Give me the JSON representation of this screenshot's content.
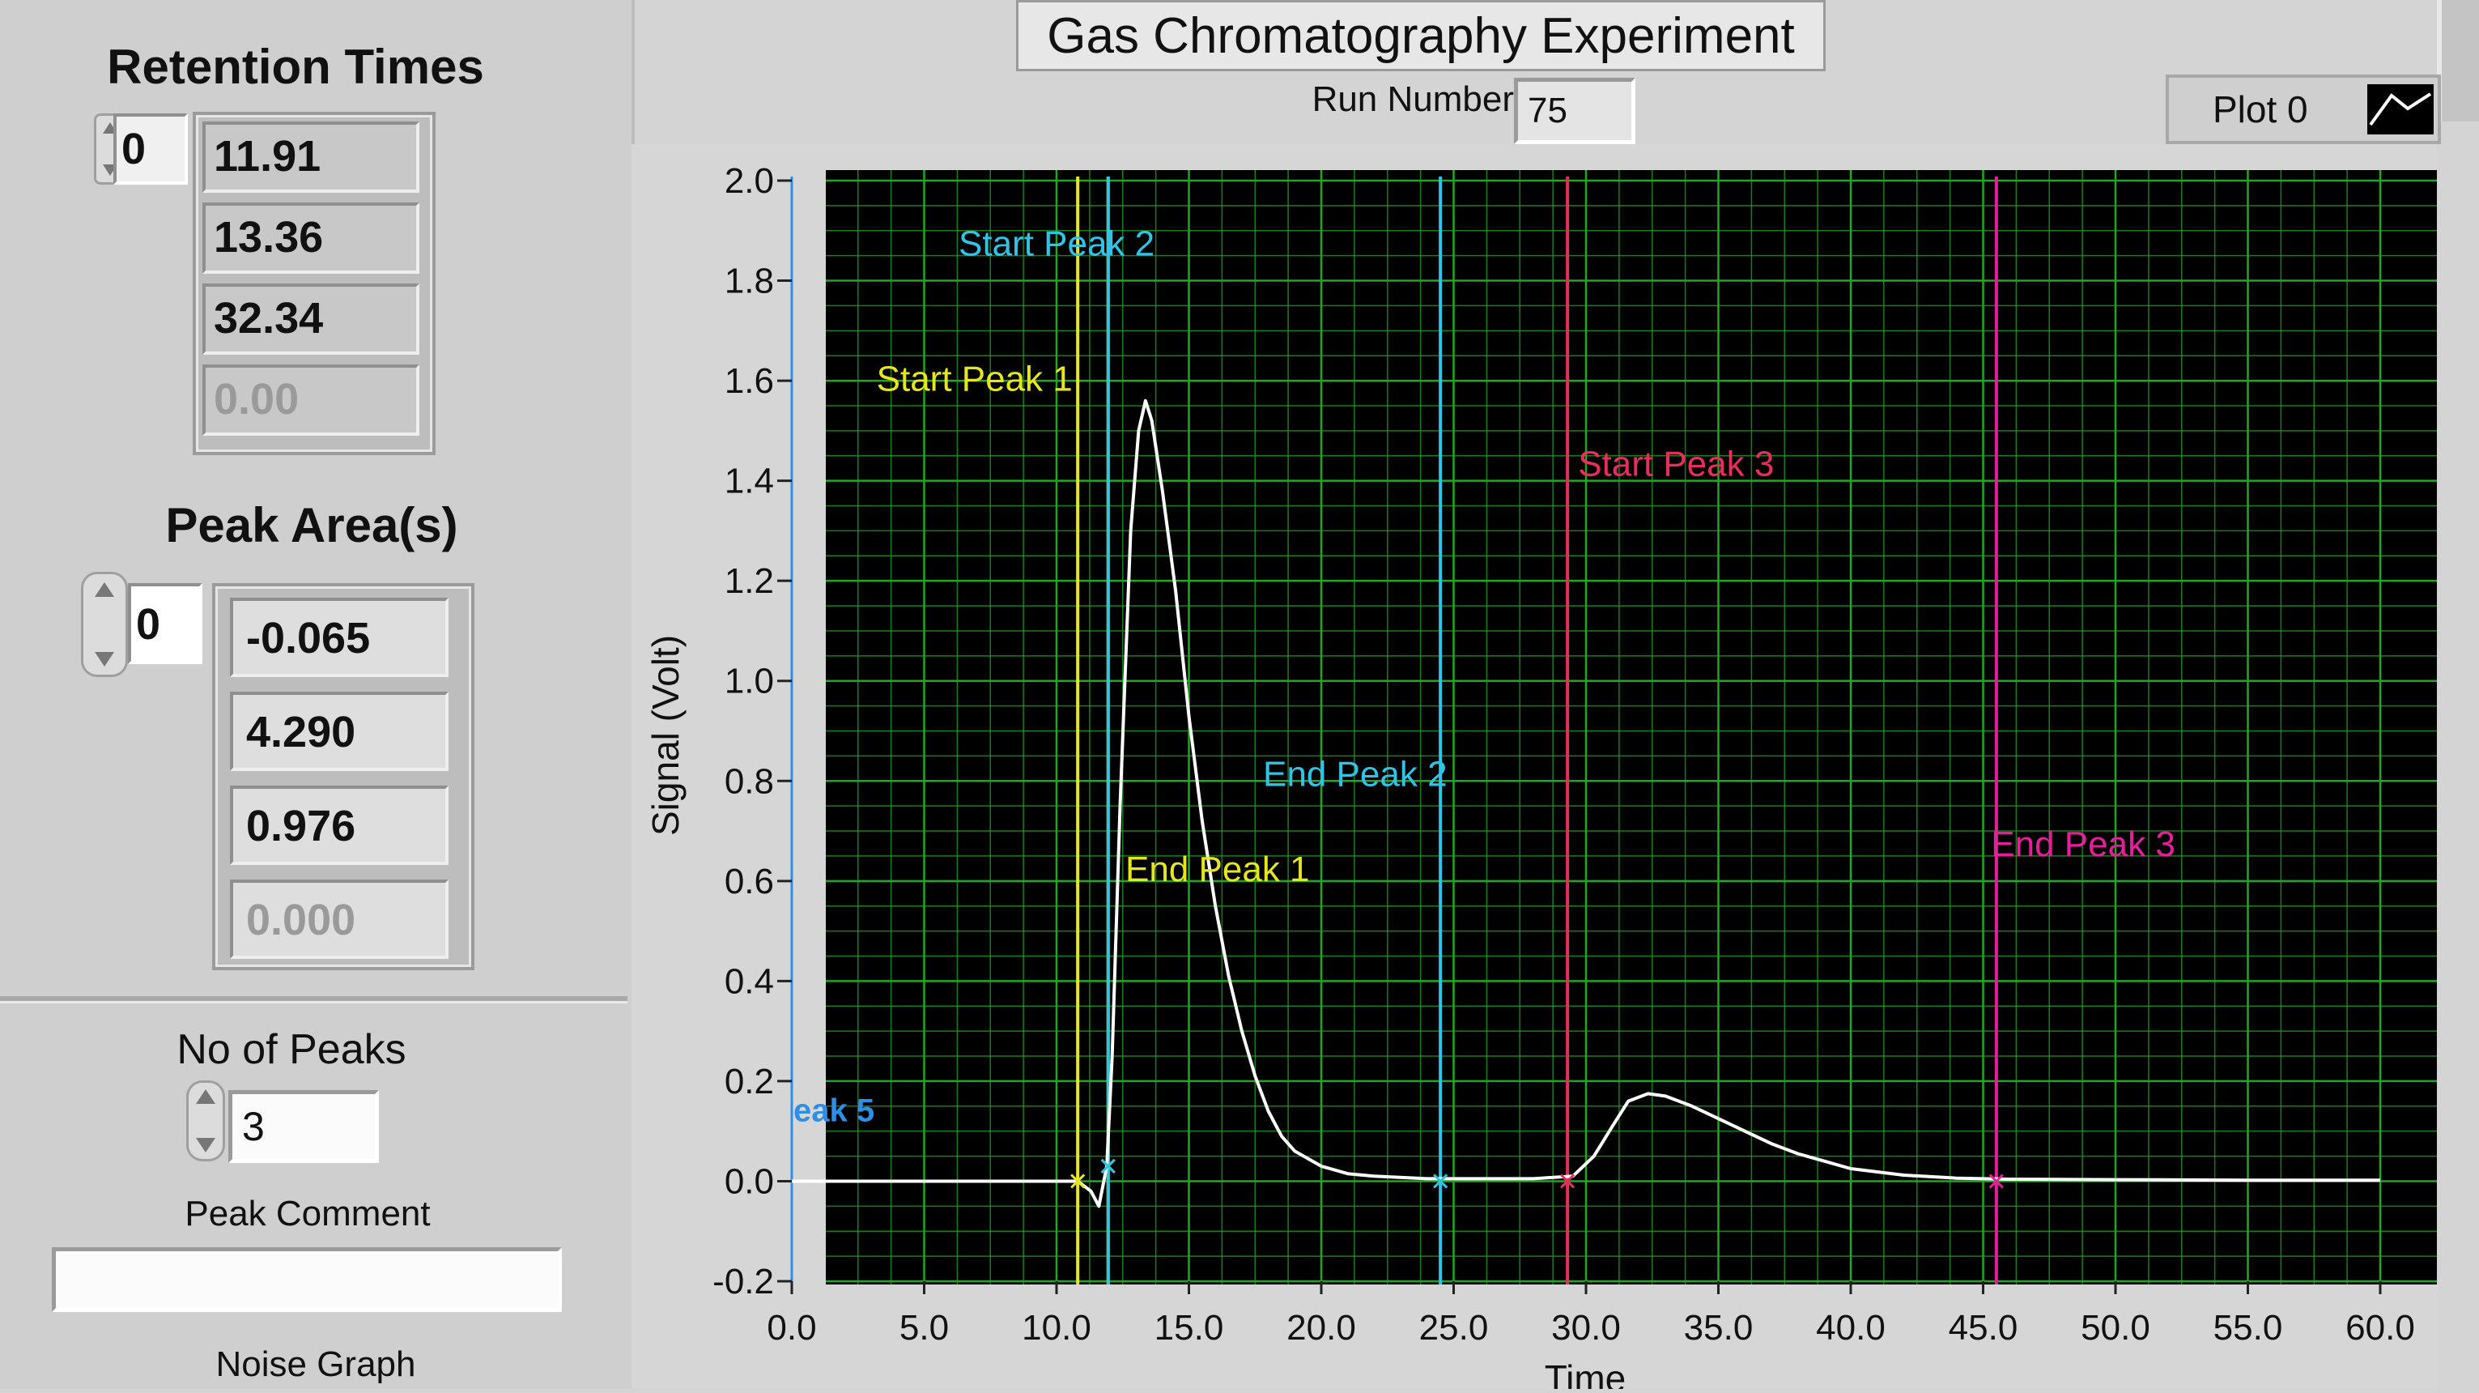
{
  "retention": {
    "title": "Retention Times",
    "index": "0",
    "values": [
      "11.91",
      "13.36",
      "32.34",
      "0.00"
    ]
  },
  "area": {
    "title": "Peak Area(s)",
    "index": "0",
    "values": [
      "-0.065",
      "4.290",
      "0.976",
      "0.000"
    ]
  },
  "peaks": {
    "label": "No of Peaks",
    "value": "3",
    "comment_label": "Peak Comment",
    "comment_value": "",
    "noise_label": "Noise Graph"
  },
  "header": {
    "title": "Gas Chromatography Experiment",
    "run_label": "Run Number",
    "run_value": "75",
    "plot_legend": "Plot 0"
  },
  "chart_data": {
    "type": "line",
    "xlabel": "Time",
    "ylabel": "Signal (Volt)",
    "xlim": [
      0,
      60
    ],
    "ylim": [
      -0.2,
      2.0
    ],
    "xticks": [
      "0.0",
      "5.0",
      "10.0",
      "15.0",
      "20.0",
      "25.0",
      "30.0",
      "35.0",
      "40.0",
      "45.0",
      "50.0",
      "55.0",
      "60.0"
    ],
    "yticks": [
      "-0.2",
      "0.0",
      "0.2",
      "0.4",
      "0.6",
      "0.8",
      "1.0",
      "1.2",
      "1.4",
      "1.6",
      "1.8",
      "2.0"
    ],
    "grid": true,
    "background": "#000000",
    "grid_color": "#1fa81f",
    "trace_color": "#ffffff",
    "series": [
      {
        "x": [
          0,
          2,
          4,
          6,
          8,
          10,
          10.8,
          11.3,
          11.6,
          11.9,
          12.1,
          12.4,
          12.8,
          13.1,
          13.36,
          13.6,
          14.0,
          14.5,
          15.0,
          15.5,
          16.0,
          16.5,
          17.0,
          17.5,
          18.0,
          18.5,
          19.0,
          20.0,
          21.0,
          22.0,
          24.0,
          26.0,
          28.0,
          29.5,
          30.3,
          31.0,
          31.6,
          32.34,
          33.0,
          34.0,
          35.0,
          36.0,
          37.0,
          38.0,
          39.0,
          40.0,
          42.0,
          44.0,
          46.0,
          50.0,
          55.0,
          60.0
        ],
        "y": [
          0.0,
          0.0,
          0.0,
          0.0,
          0.0,
          0.0,
          0.0,
          -0.02,
          -0.05,
          0.03,
          0.25,
          0.75,
          1.3,
          1.5,
          1.56,
          1.52,
          1.38,
          1.18,
          0.93,
          0.72,
          0.55,
          0.41,
          0.3,
          0.21,
          0.14,
          0.09,
          0.06,
          0.03,
          0.015,
          0.01,
          0.005,
          0.005,
          0.005,
          0.01,
          0.05,
          0.11,
          0.16,
          0.175,
          0.17,
          0.15,
          0.125,
          0.1,
          0.075,
          0.055,
          0.04,
          0.025,
          0.012,
          0.006,
          0.004,
          0.003,
          0.002,
          0.002
        ]
      }
    ],
    "markers": [
      {
        "label": "Start Peak 1",
        "x": 10.8,
        "color": "#e6e61e",
        "label_x": 3.2,
        "label_y": 1.58
      },
      {
        "label": "End Peak 1",
        "x": 11.95,
        "color": "#e6e61e",
        "label_x": 12.6,
        "label_y": 0.6
      },
      {
        "label": "Start Peak 2",
        "x": 11.95,
        "color": "#2fc4e6",
        "label_x": 6.3,
        "label_y": 1.85
      },
      {
        "label": "End Peak 2",
        "x": 24.5,
        "color": "#2fc4e6",
        "label_x": 17.8,
        "label_y": 0.79
      },
      {
        "label": "Start Peak 3",
        "x": 29.3,
        "color": "#e62e5a",
        "label_x": 29.7,
        "label_y": 1.41
      },
      {
        "label": "End Peak 3",
        "x": 45.5,
        "color": "#e61e9b",
        "label_x": 45.3,
        "label_y": 0.65
      }
    ],
    "y_axis_marker": {
      "label": "eak 5",
      "color": "#2f8fe6",
      "x": 0.0,
      "label_y": 0.12
    }
  }
}
